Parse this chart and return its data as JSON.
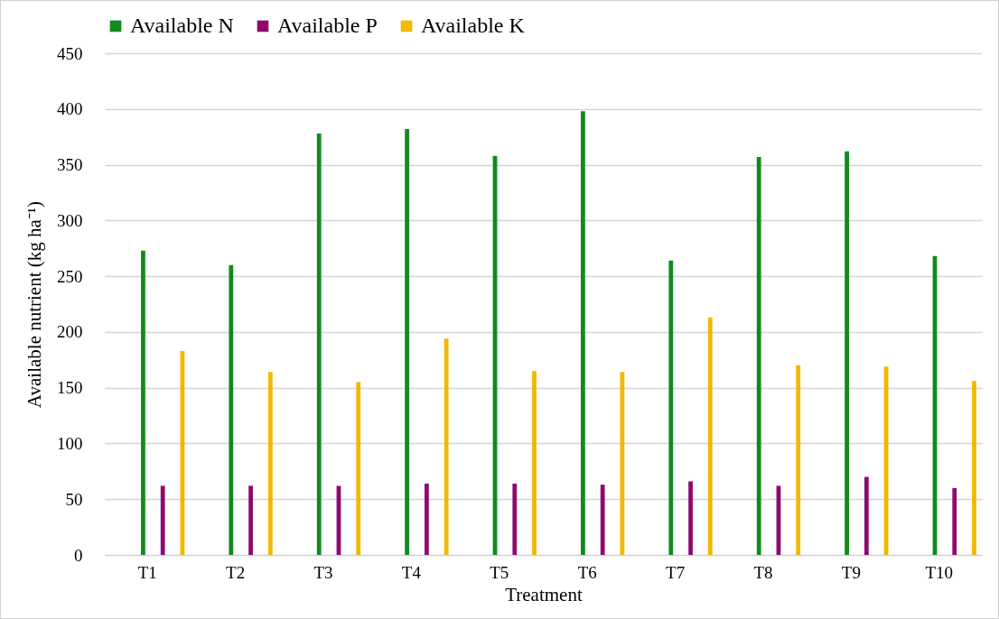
{
  "chart_data": {
    "type": "bar",
    "xlabel": "Treatment",
    "ylabel": "Available nutrient (kg ha⁻¹)",
    "categories": [
      "T1",
      "T2",
      "T3",
      "T4",
      "T5",
      "T6",
      "T7",
      "T8",
      "T9",
      "T10"
    ],
    "series": [
      {
        "name": "Available N",
        "color": "#118a1e",
        "values": [
          273,
          260,
          378,
          382,
          358,
          398,
          264,
          357,
          362,
          268
        ]
      },
      {
        "name": "Available P",
        "color": "#8e0a6e",
        "values": [
          62,
          62,
          62,
          64,
          64,
          63,
          66,
          62,
          70,
          60
        ]
      },
      {
        "name": "Available K",
        "color": "#f2b800",
        "values": [
          183,
          164,
          155,
          194,
          165,
          164,
          213,
          170,
          169,
          156
        ]
      }
    ],
    "ylim": [
      0,
      450
    ],
    "yticks": [
      0,
      50,
      100,
      150,
      200,
      250,
      300,
      350,
      400,
      450
    ],
    "grid": "y",
    "legend": "top"
  }
}
